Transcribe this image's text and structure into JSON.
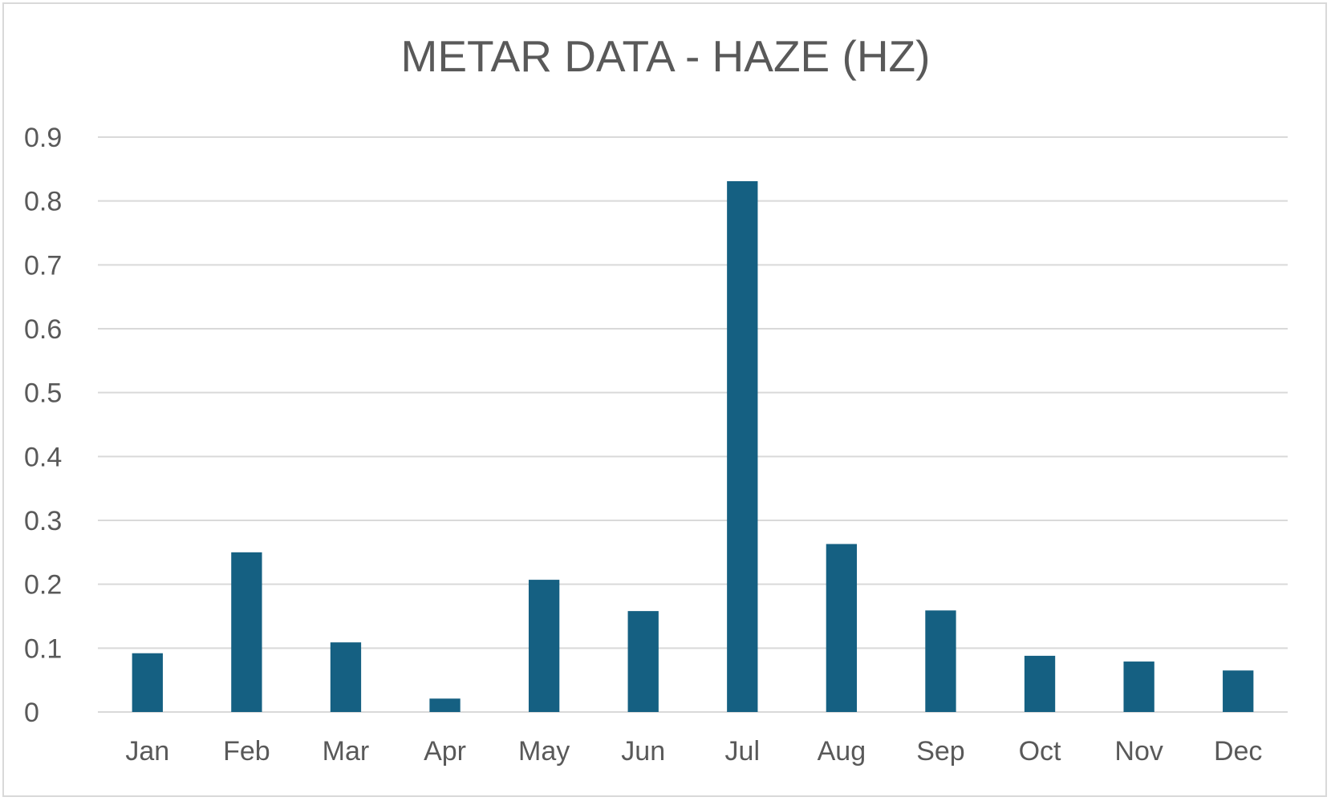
{
  "chart_data": {
    "type": "bar",
    "title": "METAR DATA - HAZE (HZ)",
    "xlabel": "",
    "ylabel": "",
    "categories": [
      "Jan",
      "Feb",
      "Mar",
      "Apr",
      "May",
      "Jun",
      "Jul",
      "Aug",
      "Sep",
      "Oct",
      "Nov",
      "Dec"
    ],
    "values": [
      0.092,
      0.25,
      0.109,
      0.021,
      0.207,
      0.158,
      0.831,
      0.263,
      0.159,
      0.088,
      0.079,
      0.065
    ],
    "ylim": [
      0,
      0.9
    ],
    "yticks": [
      "0",
      "0.1",
      "0.2",
      "0.3",
      "0.4",
      "0.5",
      "0.6",
      "0.7",
      "0.8",
      "0.9"
    ],
    "grid": true,
    "legend": "none",
    "bar_color": "#156082",
    "grid_color": "#d9d9d9",
    "text_color": "#595959"
  }
}
